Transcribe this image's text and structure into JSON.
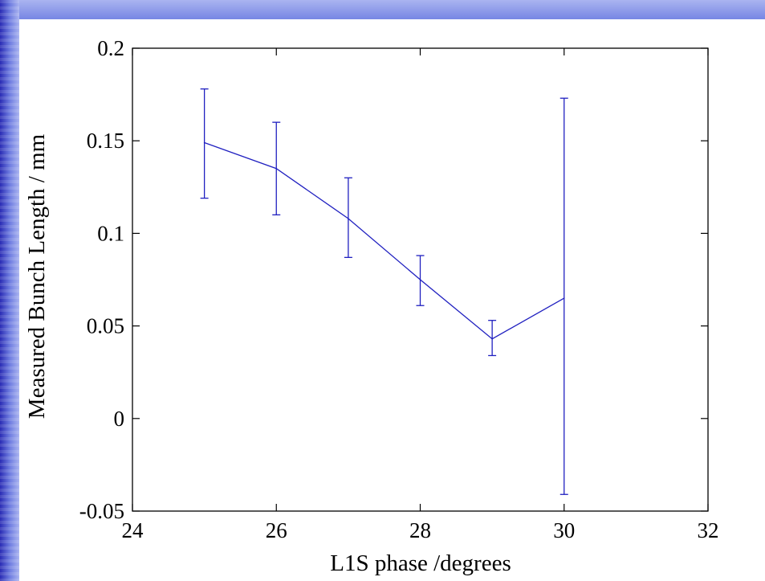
{
  "colors": {
    "slide_gradient_dark": "#2a2cb4",
    "slide_gradient_light": "#aab4f0",
    "series": "#2020c0",
    "axis": "#000000",
    "plot_background": "#ffffff"
  },
  "chart_data": {
    "type": "line",
    "title": "",
    "xlabel": "L1S phase /degrees",
    "ylabel": "Measured Bunch Length / mm",
    "xlim": [
      24,
      32
    ],
    "ylim": [
      -0.05,
      0.2
    ],
    "xticks": [
      24,
      26,
      28,
      30,
      32
    ],
    "xtick_labels": [
      "24",
      "26",
      "28",
      "30",
      "32"
    ],
    "yticks": [
      -0.05,
      0,
      0.05,
      0.1,
      0.15,
      0.2
    ],
    "ytick_labels": [
      "-0.05",
      "0",
      "0.05",
      "0.1",
      "0.15",
      "0.2"
    ],
    "grid": false,
    "legend": "none",
    "series": [
      {
        "x": [
          25,
          26,
          27,
          28,
          29,
          30
        ],
        "y": [
          0.149,
          0.135,
          0.108,
          0.075,
          0.043,
          0.065
        ],
        "y_err_low": [
          0.119,
          0.11,
          0.087,
          0.061,
          0.034,
          -0.041
        ],
        "y_err_high": [
          0.178,
          0.16,
          0.13,
          0.088,
          0.053,
          0.173
        ]
      }
    ]
  }
}
